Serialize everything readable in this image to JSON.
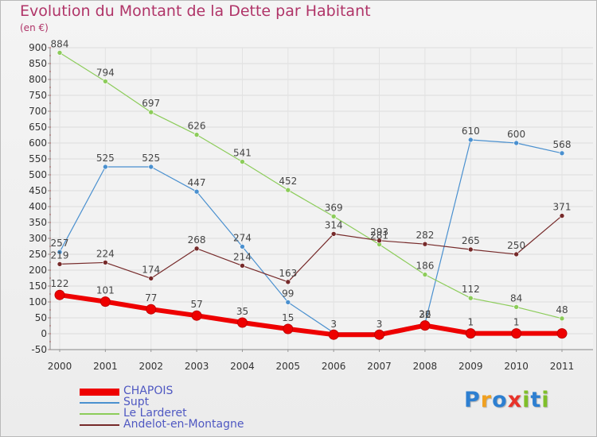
{
  "header": {
    "title": "Evolution du Montant de la Dette par Habitant",
    "unit": "(en €)"
  },
  "logo": {
    "text": "Proxiti",
    "letters": [
      "P",
      "r",
      "o",
      "x",
      "i",
      "t",
      "i"
    ],
    "colors": [
      "#2d7fd1",
      "#f0a020",
      "#2d7fd1",
      "#e8332a",
      "#7fbf2a",
      "#2d7fd1",
      "#7fbf2a"
    ]
  },
  "chart_data": {
    "type": "line",
    "title": "Evolution du Montant de la Dette par Habitant",
    "ylabel": "(en €)",
    "x": [
      "2000",
      "2001",
      "2002",
      "2003",
      "2004",
      "2005",
      "2006",
      "2007",
      "2008",
      "2009",
      "2010",
      "2011"
    ],
    "ylim": [
      -50,
      900
    ],
    "yticks": [
      -50,
      0,
      50,
      100,
      150,
      200,
      250,
      300,
      350,
      400,
      450,
      500,
      550,
      600,
      650,
      700,
      750,
      800,
      850,
      900
    ],
    "grid": true,
    "legend_position": "bottom-left",
    "series": [
      {
        "name": "CHAPOIS",
        "color": "#ee0000",
        "values": [
          122,
          101,
          77,
          57,
          35,
          15,
          -3,
          -3,
          26,
          1,
          1,
          1
        ],
        "labels": [
          "122",
          "101",
          "77",
          "57",
          "35",
          "15",
          "",
          "",
          "26",
          "1",
          "1",
          ""
        ]
      },
      {
        "name": "Supt",
        "color": "#4a90cf",
        "values": [
          257,
          525,
          525,
          447,
          274,
          99,
          3,
          3,
          32,
          610,
          600,
          568
        ],
        "labels": [
          "257",
          "525",
          "525",
          "447",
          "274",
          "99",
          "3",
          "3",
          "32",
          "610",
          "600",
          "568"
        ]
      },
      {
        "name": "Le Larderet",
        "color": "#8ccc5a",
        "values": [
          884,
          794,
          697,
          626,
          541,
          452,
          369,
          281,
          186,
          112,
          84,
          48
        ],
        "labels": [
          "884",
          "794",
          "697",
          "626",
          "541",
          "452",
          "369",
          "281",
          "186",
          "112",
          "84",
          "48"
        ]
      },
      {
        "name": "Andelot-en-Montagne",
        "color": "#762a2a",
        "values": [
          219,
          224,
          174,
          268,
          214,
          163,
          314,
          293,
          282,
          265,
          250,
          371
        ],
        "labels": [
          "219",
          "224",
          "174",
          "268",
          "214",
          "163",
          "314",
          "293",
          "282",
          "265",
          "250",
          "371"
        ]
      }
    ]
  }
}
